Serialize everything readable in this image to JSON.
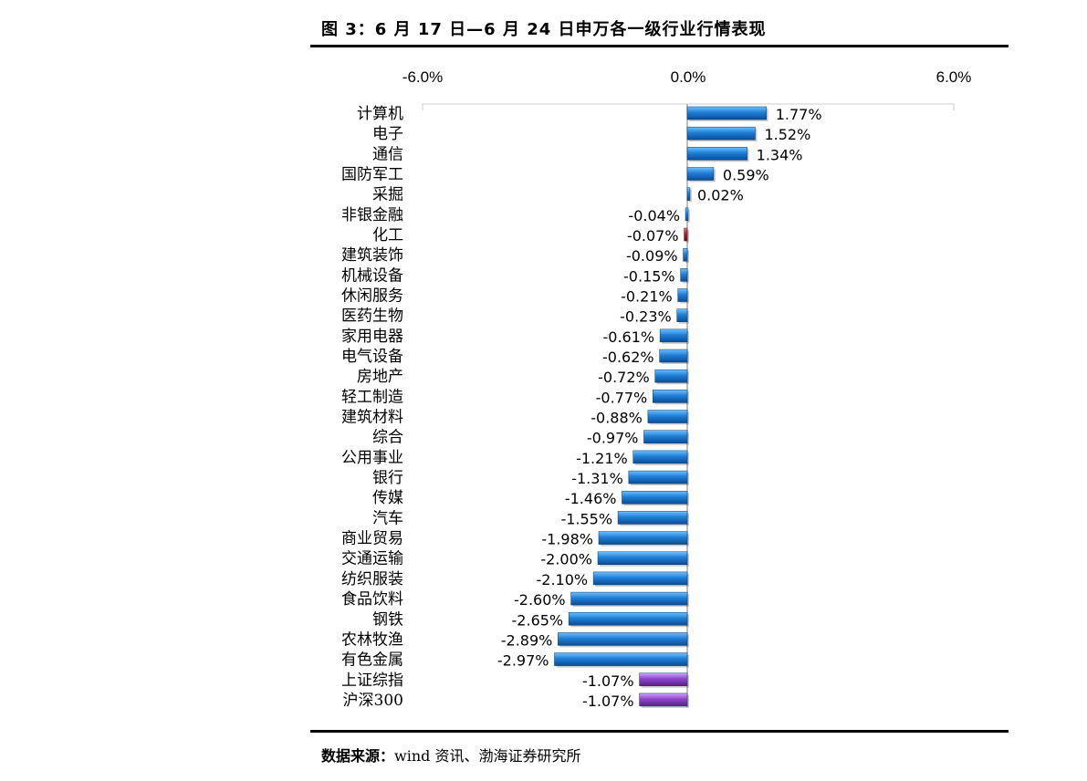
{
  "title": "图 3：6 月 17 日—6 月 24 日申万各一级行业行情表现",
  "source_label": "数据来源：",
  "source_text": "wind 资讯、渤海证券研究所",
  "colors": {
    "default": "#1f7fd6",
    "highlight": "#c0171b",
    "index": "#8e44c8"
  },
  "chart_data": {
    "type": "bar",
    "orientation": "horizontal",
    "title": "图 3：6 月 17 日—6 月 24 日申万各一级行业行情表现",
    "xlim": [
      -6.0,
      6.0
    ],
    "xticks": [
      "-6.0%",
      "0.0%",
      "6.0%"
    ],
    "x_axis_position": "top",
    "grid": false,
    "unit": "%",
    "categories": [
      "计算机",
      "电子",
      "通信",
      "国防军工",
      "采掘",
      "非银金融",
      "化工",
      "建筑装饰",
      "机械设备",
      "休闲服务",
      "医药生物",
      "家用电器",
      "电气设备",
      "房地产",
      "轻工制造",
      "建筑材料",
      "综合",
      "公用事业",
      "银行",
      "传媒",
      "汽车",
      "商业贸易",
      "交通运输",
      "纺织服装",
      "食品饮料",
      "钢铁",
      "农林牧渔",
      "有色金属",
      "上证综指",
      "沪深300"
    ],
    "values": [
      1.77,
      1.52,
      1.34,
      0.59,
      0.02,
      -0.04,
      -0.07,
      -0.09,
      -0.15,
      -0.21,
      -0.23,
      -0.61,
      -0.62,
      -0.72,
      -0.77,
      -0.88,
      -0.97,
      -1.21,
      -1.31,
      -1.46,
      -1.55,
      -1.98,
      -2.0,
      -2.1,
      -2.6,
      -2.65,
      -2.89,
      -2.97,
      -1.07,
      -1.07
    ],
    "labels": [
      "1.77%",
      "1.52%",
      "1.34%",
      "0.59%",
      "0.02%",
      "-0.04%",
      "-0.07%",
      "-0.09%",
      "-0.15%",
      "-0.21%",
      "-0.23%",
      "-0.61%",
      "-0.62%",
      "-0.72%",
      "-0.77%",
      "-0.88%",
      "-0.97%",
      "-1.21%",
      "-1.31%",
      "-1.46%",
      "-1.55%",
      "-1.98%",
      "-2.00%",
      "-2.10%",
      "-2.60%",
      "-2.65%",
      "-2.89%",
      "-2.97%",
      "-1.07%",
      "-1.07%"
    ],
    "bar_color_keys": [
      "default",
      "default",
      "default",
      "default",
      "default",
      "default",
      "highlight",
      "default",
      "default",
      "default",
      "default",
      "default",
      "default",
      "default",
      "default",
      "default",
      "default",
      "default",
      "default",
      "default",
      "default",
      "default",
      "default",
      "default",
      "default",
      "default",
      "default",
      "default",
      "index",
      "index"
    ]
  }
}
